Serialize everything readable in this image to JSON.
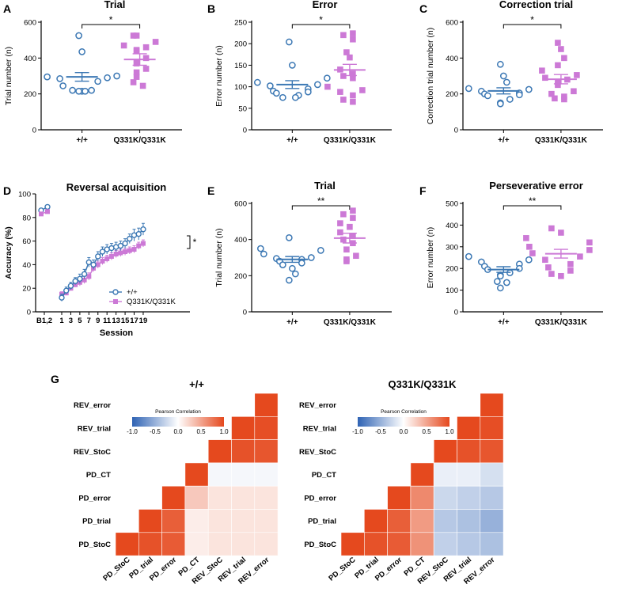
{
  "colors": {
    "wt": "#3c78b4",
    "mut": "#cc79d6",
    "hm_neg": "#2f63b4",
    "hm_pos": "#e5491e",
    "hm_grid": "#ffffff",
    "axis": "#000000"
  },
  "chart_data": [
    {
      "panel": "A",
      "type": "scatter",
      "title": "Trial",
      "ylabel": "Trial number (n)",
      "categories": [
        "+/+",
        "Q331K/Q331K"
      ],
      "ylim": [
        0,
        600
      ],
      "yticks": [
        0,
        200,
        400,
        600
      ],
      "significance": "*",
      "groups": [
        {
          "name": "+/+",
          "mean": 295,
          "sem": 24,
          "values": [
            525,
            435,
            300,
            295,
            290,
            285,
            270,
            245,
            220,
            220,
            215,
            215,
            215
          ]
        },
        {
          "name": "Q331K/Q331K",
          "mean": 392,
          "sem": 32,
          "values": [
            525,
            525,
            490,
            470,
            460,
            445,
            440,
            400,
            375,
            370,
            340,
            320,
            295,
            265,
            245
          ]
        }
      ]
    },
    {
      "panel": "B",
      "type": "scatter",
      "title": "Error",
      "ylabel": "Error number (n)",
      "categories": [
        "+/+",
        "Q331K/Q331K"
      ],
      "ylim": [
        0,
        250
      ],
      "yticks": [
        0,
        50,
        100,
        150,
        200,
        250
      ],
      "significance": "*",
      "groups": [
        {
          "name": "+/+",
          "mean": 105,
          "sem": 9,
          "values": [
            204,
            150,
            120,
            110,
            105,
            102,
            95,
            90,
            88,
            85,
            80,
            75,
            75
          ]
        },
        {
          "name": "Q331K/Q331K",
          "mean": 139,
          "sem": 13,
          "values": [
            224,
            220,
            210,
            180,
            168,
            140,
            130,
            125,
            120,
            100,
            92,
            88,
            80,
            70,
            65
          ]
        }
      ]
    },
    {
      "panel": "C",
      "type": "scatter",
      "title": "Correction trial",
      "ylabel": "Correction trial number (n)",
      "categories": [
        "+/+",
        "Q331K/Q331K"
      ],
      "ylim": [
        0,
        600
      ],
      "yticks": [
        0,
        200,
        400,
        600
      ],
      "significance": "*",
      "groups": [
        {
          "name": "+/+",
          "mean": 217,
          "sem": 17,
          "values": [
            365,
            300,
            265,
            230,
            225,
            215,
            205,
            200,
            195,
            190,
            170,
            150,
            145
          ]
        },
        {
          "name": "Q331K/Q331K",
          "mean": 282,
          "sem": 26,
          "values": [
            485,
            450,
            400,
            360,
            330,
            305,
            290,
            280,
            265,
            250,
            215,
            200,
            185,
            175,
            170
          ]
        }
      ]
    },
    {
      "panel": "D",
      "type": "line",
      "title": "Reversal acquisition",
      "xlabel": "Session",
      "ylabel": "Accuracy (%)",
      "xticks": [
        "B1,2",
        "1",
        "3",
        "5",
        "7",
        "9",
        "11",
        "13",
        "15",
        "17",
        "19"
      ],
      "ylim": [
        0,
        100
      ],
      "yticks": [
        0,
        20,
        40,
        60,
        80,
        100
      ],
      "significance": "*",
      "baseline": {
        "x": [
          "B1",
          "B2"
        ],
        "wt": [
          86,
          89
        ],
        "mut": [
          83,
          85
        ]
      },
      "series": [
        {
          "name": "+/+",
          "x": [
            1,
            2,
            3,
            4,
            5,
            6,
            7,
            8,
            9,
            10,
            11,
            12,
            13,
            14,
            15,
            16,
            17,
            18,
            19
          ],
          "values": [
            12,
            18,
            22,
            26,
            28,
            32,
            42,
            40,
            47,
            51,
            53,
            54,
            55,
            56,
            58,
            62,
            65,
            66,
            70
          ],
          "errors": [
            3,
            3,
            3,
            3,
            4,
            4,
            4,
            4,
            4,
            4,
            4,
            4,
            4,
            4,
            4,
            4,
            5,
            5,
            5
          ]
        },
        {
          "name": "Q331K/Q331K",
          "x": [
            1,
            2,
            3,
            4,
            5,
            6,
            7,
            8,
            9,
            10,
            11,
            12,
            13,
            14,
            15,
            16,
            17,
            18,
            19
          ],
          "values": [
            15,
            16,
            20,
            23,
            25,
            27,
            30,
            37,
            40,
            43,
            45,
            47,
            49,
            50,
            51,
            52,
            53,
            56,
            58
          ],
          "errors": [
            2,
            2,
            2,
            2,
            3,
            3,
            3,
            3,
            3,
            3,
            3,
            3,
            3,
            3,
            3,
            3,
            3,
            3,
            3
          ]
        }
      ]
    },
    {
      "panel": "E",
      "type": "scatter",
      "title": "Trial",
      "ylabel": "Trial number (n)",
      "categories": [
        "+/+",
        "Q331K/Q331K"
      ],
      "ylim": [
        0,
        600
      ],
      "yticks": [
        0,
        200,
        400,
        600
      ],
      "significance": "**",
      "groups": [
        {
          "name": "+/+",
          "mean": 290,
          "sem": 16,
          "values": [
            410,
            350,
            340,
            320,
            300,
            295,
            290,
            280,
            270,
            260,
            240,
            210,
            175
          ]
        },
        {
          "name": "Q331K/Q331K",
          "mean": 408,
          "sem": 27,
          "values": [
            560,
            540,
            520,
            490,
            470,
            440,
            420,
            400,
            380,
            345,
            310,
            290,
            280
          ]
        }
      ]
    },
    {
      "panel": "F",
      "type": "scatter",
      "title": "Perseverative error",
      "ylabel": "Error number (n)",
      "categories": [
        "+/+",
        "Q331K/Q331K"
      ],
      "ylim": [
        0,
        500
      ],
      "yticks": [
        0,
        100,
        200,
        300,
        400,
        500
      ],
      "significance": "**",
      "groups": [
        {
          "name": "+/+",
          "mean": 195,
          "sem": 13,
          "values": [
            255,
            240,
            230,
            220,
            210,
            200,
            195,
            180,
            170,
            165,
            140,
            135,
            110
          ]
        },
        {
          "name": "Q331K/Q331K",
          "mean": 268,
          "sem": 20,
          "values": [
            385,
            365,
            340,
            320,
            300,
            285,
            270,
            255,
            240,
            220,
            205,
            190,
            175,
            165
          ]
        }
      ]
    },
    {
      "panel": "G",
      "type": "heatmap",
      "variables": [
        "PD_StoC",
        "PD_trial",
        "PD_error",
        "PD_CT",
        "REV_StoC",
        "REV_trial",
        "REV_error"
      ],
      "colorbar": {
        "label": "Pearson Correlation",
        "ticks": [
          "-1.0",
          "-0.5",
          "0.0",
          "0.5",
          "1.0"
        ],
        "range": [
          -1,
          1
        ]
      },
      "maps": [
        {
          "title": "+/+",
          "matrix": [
            [
              1.0,
              0.95,
              0.9,
              0.1,
              0.15,
              0.15,
              0.15
            ],
            [
              0.95,
              1.0,
              0.88,
              0.1,
              0.15,
              0.15,
              0.15
            ],
            [
              0.9,
              0.88,
              1.0,
              0.3,
              0.15,
              0.15,
              0.15
            ],
            [
              0.1,
              0.1,
              0.3,
              1.0,
              -0.05,
              -0.05,
              -0.05
            ],
            [
              0.15,
              0.15,
              0.15,
              -0.05,
              1.0,
              0.95,
              0.93
            ],
            [
              0.15,
              0.15,
              0.15,
              -0.05,
              0.95,
              1.0,
              0.97
            ],
            [
              0.15,
              0.15,
              0.15,
              -0.05,
              0.93,
              0.97,
              1.0
            ]
          ]
        },
        {
          "title": "Q331K/Q331K",
          "matrix": [
            [
              1.0,
              0.95,
              0.9,
              0.6,
              -0.3,
              -0.35,
              -0.4
            ],
            [
              0.95,
              1.0,
              0.88,
              0.55,
              -0.35,
              -0.4,
              -0.5
            ],
            [
              0.9,
              0.88,
              1.0,
              0.65,
              -0.25,
              -0.3,
              -0.35
            ],
            [
              0.6,
              0.55,
              0.65,
              1.0,
              -0.1,
              -0.1,
              -0.2
            ],
            [
              -0.3,
              -0.35,
              -0.25,
              -0.1,
              1.0,
              0.95,
              0.93
            ],
            [
              -0.35,
              -0.4,
              -0.3,
              -0.1,
              0.95,
              1.0,
              0.97
            ],
            [
              -0.4,
              -0.5,
              -0.35,
              -0.2,
              0.93,
              0.97,
              1.0
            ]
          ]
        }
      ]
    }
  ]
}
